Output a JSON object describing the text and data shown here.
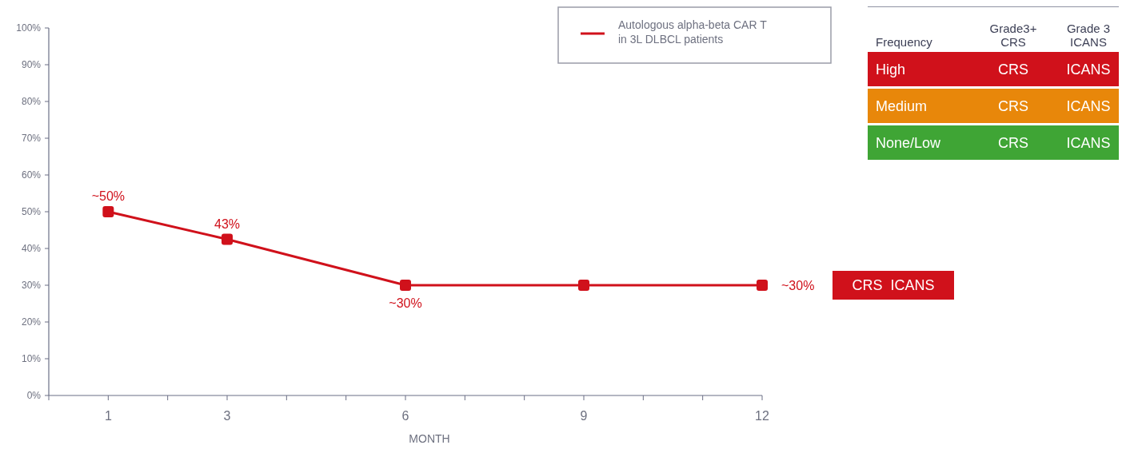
{
  "chart_data": {
    "type": "line",
    "xlabel": "MONTH",
    "x": [
      1,
      3,
      6,
      9,
      12
    ],
    "series": [
      {
        "name": "Autologous alpha-beta CAR T in 3L DLBCL patients",
        "color": "#d0111b",
        "values": [
          50,
          42.5,
          30,
          30,
          30
        ],
        "value_labels": [
          "~50%",
          "43%",
          "~30%",
          null,
          "~30%"
        ]
      }
    ],
    "xlim": [
      0,
      12
    ],
    "xticks": [
      {
        "value": 0,
        "label": null
      },
      1,
      {
        "value": 2,
        "label": null
      },
      3,
      {
        "value": 4,
        "label": null
      },
      {
        "value": 5,
        "label": null
      },
      6,
      {
        "value": 7,
        "label": null
      },
      {
        "value": 8,
        "label": null
      },
      9,
      {
        "value": 10,
        "label": null
      },
      {
        "value": 11,
        "label": null
      },
      12
    ],
    "ylim": [
      0,
      100
    ],
    "yticks": [
      {
        "value": 0,
        "label": "0%"
      },
      {
        "value": 10,
        "label": "10%"
      },
      {
        "value": 20,
        "label": "20%"
      },
      {
        "value": 30,
        "label": "30%"
      },
      {
        "value": 40,
        "label": "40%"
      },
      {
        "value": 50,
        "label": "50%"
      },
      {
        "value": 60,
        "label": "60%"
      },
      {
        "value": 70,
        "label": "70%"
      },
      {
        "value": 80,
        "label": "80%"
      },
      {
        "value": 90,
        "label": "90%"
      },
      {
        "value": 100,
        "label": "100%"
      }
    ],
    "grid": false,
    "legend": "top right",
    "marker": "square",
    "line_style": "solid",
    "annotations": [
      "Frequency",
      "Grade3+\nCRS",
      "Grade 3\nICANS",
      "High",
      "CRS",
      "ICANS",
      "Medium",
      "CRS",
      "ICANS",
      "None/Low",
      "CRS",
      "ICANS",
      "CRS  ICANS"
    ]
  }
}
